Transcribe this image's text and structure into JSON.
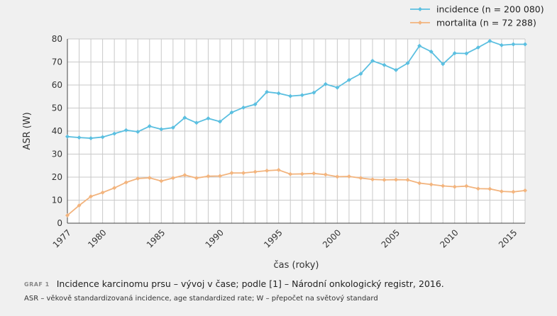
{
  "chart_data": {
    "type": "line",
    "title": "",
    "xlabel": "čas (roky)",
    "ylabel": "ASR (W)",
    "xlim": [
      1977,
      2016
    ],
    "ylim": [
      0,
      80
    ],
    "yticks": [
      0,
      10,
      20,
      30,
      40,
      50,
      60,
      70,
      80
    ],
    "xtick_labels": [
      "1977",
      "1980",
      "1985",
      "1990",
      "1995",
      "2000",
      "2005",
      "2010",
      "2015"
    ],
    "grid": true,
    "legend": "top-right",
    "x": [
      1977,
      1978,
      1979,
      1980,
      1981,
      1982,
      1983,
      1984,
      1985,
      1986,
      1987,
      1988,
      1989,
      1990,
      1991,
      1992,
      1993,
      1994,
      1995,
      1996,
      1997,
      1998,
      1999,
      2000,
      2001,
      2002,
      2003,
      2004,
      2005,
      2006,
      2007,
      2008,
      2009,
      2010,
      2011,
      2012,
      2013,
      2014,
      2015,
      2016
    ],
    "series": [
      {
        "name": "incidence (n = 200 080)",
        "color": "#5bbfe0",
        "values": [
          37.6,
          37.2,
          36.9,
          37.4,
          38.9,
          40.4,
          39.7,
          42.1,
          40.8,
          41.5,
          45.8,
          43.6,
          45.5,
          44.1,
          48.1,
          50.2,
          51.6,
          57.0,
          56.4,
          55.2,
          55.6,
          56.7,
          60.4,
          58.9,
          62.2,
          64.9,
          70.5,
          68.7,
          66.5,
          69.5,
          77.0,
          74.5,
          69.1,
          73.8,
          73.7,
          76.3,
          79.1,
          77.3,
          77.7,
          77.7
        ]
      },
      {
        "name": "mortalita (n = 72 288)",
        "color": "#f2b47e",
        "values": [
          3.4,
          7.7,
          11.6,
          13.3,
          15.3,
          17.7,
          19.4,
          19.7,
          18.3,
          19.6,
          20.9,
          19.6,
          20.4,
          20.5,
          21.8,
          21.8,
          22.3,
          22.8,
          23.1,
          21.3,
          21.4,
          21.6,
          21.1,
          20.2,
          20.3,
          19.6,
          19.0,
          18.8,
          18.9,
          18.8,
          17.4,
          16.8,
          16.2,
          15.8,
          16.1,
          15.0,
          14.9,
          13.8,
          13.6,
          14.2
        ]
      }
    ]
  },
  "caption": {
    "label": "GRAF 1",
    "text": "Incidence karcinomu prsu – vývoj v čase; podle [1] – Národní onkologický registr, 2016."
  },
  "note": "ASR – věkově standardizovaná incidence, age standardized rate; W – přepočet na světový standard"
}
